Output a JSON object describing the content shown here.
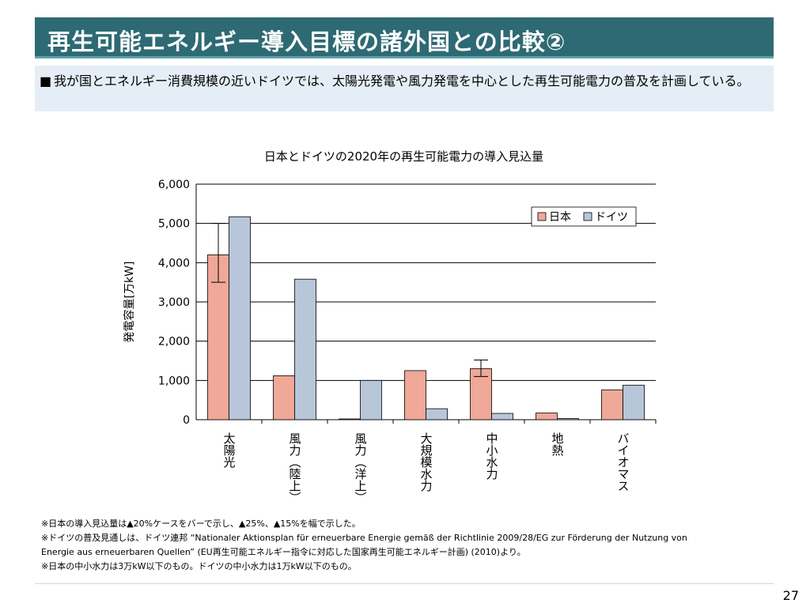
{
  "header": {
    "title": "再生可能エネルギー導入目標の諸外国との比較②"
  },
  "summary": {
    "bullet": "■",
    "text": "我が国とエネルギー消費規模の近いドイツでは、太陽光発電や風力発電を中心とした再生可能電力の普及を計画している。"
  },
  "chart_data": {
    "type": "bar",
    "title": "日本とドイツの2020年の再生可能電力の導入見込量",
    "xlabel": "",
    "ylabel": "発電容量[万kW]",
    "ylim": [
      0,
      6000
    ],
    "yticks": [
      0,
      1000,
      2000,
      3000,
      4000,
      5000,
      6000
    ],
    "ytick_labels": [
      "0",
      "1,000",
      "2,000",
      "3,000",
      "4,000",
      "5,000",
      "6,000"
    ],
    "grid": true,
    "legend_position": "top-right",
    "categories": [
      "太陽光",
      "風力（陸上）",
      "風力（洋上）",
      "大規模水力",
      "中小水力",
      "地熱",
      "バイオマス"
    ],
    "series": [
      {
        "name": "日本",
        "color": "#f0a898",
        "values": [
          4200,
          1120,
          20,
          1250,
          1300,
          170,
          760
        ],
        "error": [
          [
            3500,
            5000
          ],
          null,
          null,
          null,
          [
            1100,
            1520
          ],
          null,
          null
        ]
      },
      {
        "name": "ドイツ",
        "color": "#b8c6da",
        "values": [
          5170,
          3580,
          1000,
          280,
          160,
          30,
          880
        ],
        "error": [
          null,
          null,
          null,
          null,
          null,
          null,
          null
        ]
      }
    ]
  },
  "notes": [
    "※日本の導入見込量は▲20%ケースをバーで示し、▲25%、▲15%を幅で示した。",
    "※ドイツの普及見通しは、ドイツ連邦 “Nationaler Aktionsplan für erneuerbare Energie gemäß der Richtlinie 2009/28/EG zur Förderung der Nutzung von",
    "Energie aus erneuerbaren Quellen” (EU再生可能エネルギー指令に対応した国家再生可能エネルギー計画) (2010)より。",
    "※日本の中小水力は3万kW以下のもの。ドイツの中小水力は1万kW以下のもの。"
  ],
  "page_number": "27"
}
